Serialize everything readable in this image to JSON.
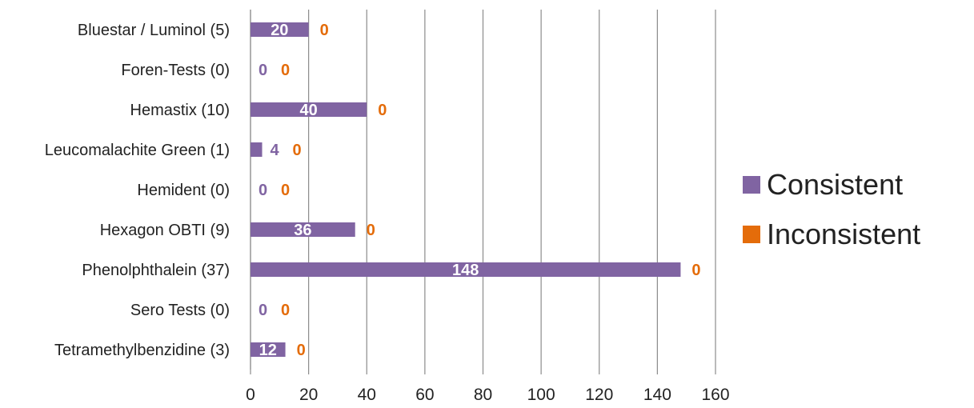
{
  "chart_data": {
    "type": "bar",
    "orientation": "horizontal",
    "categories": [
      "Bluestar / Luminol (5)",
      "Foren-Tests (0)",
      "Hemastix (10)",
      "Leucomalachite Green (1)",
      "Hemident (0)",
      "Hexagon OBTI (9)",
      "Phenolphthalein (37)",
      "Sero Tests (0)",
      "Tetramethylbenzidine (3)"
    ],
    "series": [
      {
        "name": "Consistent",
        "color": "#8064a2",
        "values": [
          20,
          0,
          40,
          4,
          0,
          36,
          148,
          0,
          12
        ]
      },
      {
        "name": "Inconsistent",
        "color": "#e46c0a",
        "values": [
          0,
          0,
          0,
          0,
          0,
          0,
          0,
          0,
          0
        ]
      }
    ],
    "x_ticks": [
      "0",
      "20",
      "40",
      "60",
      "80",
      "100",
      "120",
      "140",
      "160"
    ],
    "xlim": [
      0,
      160
    ],
    "grid": "vertical",
    "legend_position": "right",
    "title": "",
    "xlabel": "",
    "ylabel": ""
  }
}
